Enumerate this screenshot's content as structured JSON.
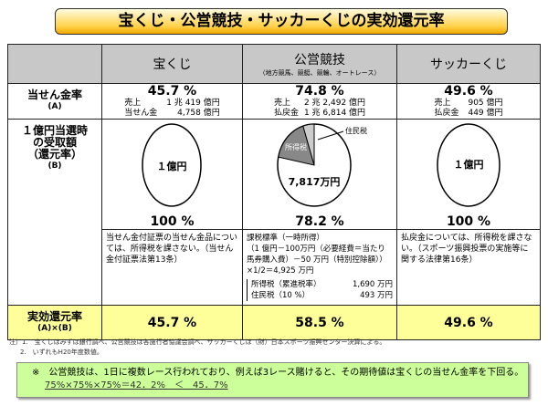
{
  "title": "宝くじ・公営競技・サッカーくじの実効還元率",
  "columns": [
    {
      "name": "宝くじ",
      "sub": ""
    },
    {
      "name": "公営競技",
      "sub": "（地方競馬、競艇、競輪、オートレース）"
    },
    {
      "name": "サッカーくじ",
      "sub": ""
    }
  ],
  "row_a": {
    "label": "当せん金率",
    "code": "(A)",
    "cells": [
      {
        "rate": "45.7 %",
        "l1": "売上",
        "v1": "1 兆 419 億円",
        "l2": "当せん金",
        "v2": "4,758 億円"
      },
      {
        "rate": "74.8 %",
        "l1": "売上",
        "v1": "2 兆 2,492 億円",
        "l2": "払戻金",
        "v2": "1 兆 6,814 億円"
      },
      {
        "rate": "49.6 %",
        "l1": "売上",
        "v1": "905 億円",
        "l2": "払戻金",
        "v2": "449 億円"
      }
    ]
  },
  "row_b": {
    "label1": "１億円当選時",
    "label2": "の受取額",
    "label3": "（還元率）",
    "code": "(B)",
    "cells": [
      {
        "center": "１億円",
        "rate": "100 %",
        "note": "当せん金付証票の当せん金品については、所得税を課さない。（当せん金付証票法第13条）"
      },
      {
        "center": "7,817万円",
        "rate": "78.2 %",
        "pie_income_tax_label": "所得税",
        "pie_resident_tax_label": "住民税",
        "pie_fractions": {
          "income_tax": 0.169,
          "resident_tax": 0.0493,
          "net": 0.7817
        },
        "note": "課税標準（一時所得）",
        "note2": "（1 億円－100万円（必要経費＝当たり馬券購入費）－50 万円（特別控除額））×1/2＝4,925 万円",
        "tax1_label": "所得税（累進税率）",
        "tax1_value": "1,690 万円",
        "tax2_label": "住民税（10 %）",
        "tax2_value": "493 万円"
      },
      {
        "center": "１億円",
        "rate": "100 %",
        "note": "払戻金については、所得税を課さない。（スポーツ振興投票の実施等に関する法律第16条）"
      }
    ]
  },
  "row_eff": {
    "label": "実効還元率",
    "code": "(A)×(B)",
    "values": [
      "45.7 %",
      "58.5 %",
      "49.6 %"
    ]
  },
  "footnotes": [
    "注）1.　宝くじはみずほ銀行調べ、公営競技は各施行者協議会調べ、サッカーくじは（財）日本スポーツ振興センター決算による。",
    "2.　いずれもH20年度数値。"
  ],
  "callout": {
    "line1": "※　公営競技は、1日に複数レース行われており、例えば3レース賭けると、その期待値は宝くじの当せん金率を下回る。",
    "line2": "75%×75%×75%＝42．2%　＜　45．7%"
  },
  "colors": {
    "header_bg": "#c8c8c8",
    "effective_bg": "#ffff99",
    "callout_bg": "#ccff99",
    "title_bg": "#ffd24a",
    "pie_income_tax": "#888888",
    "pie_resident_tax": "#cccccc"
  }
}
